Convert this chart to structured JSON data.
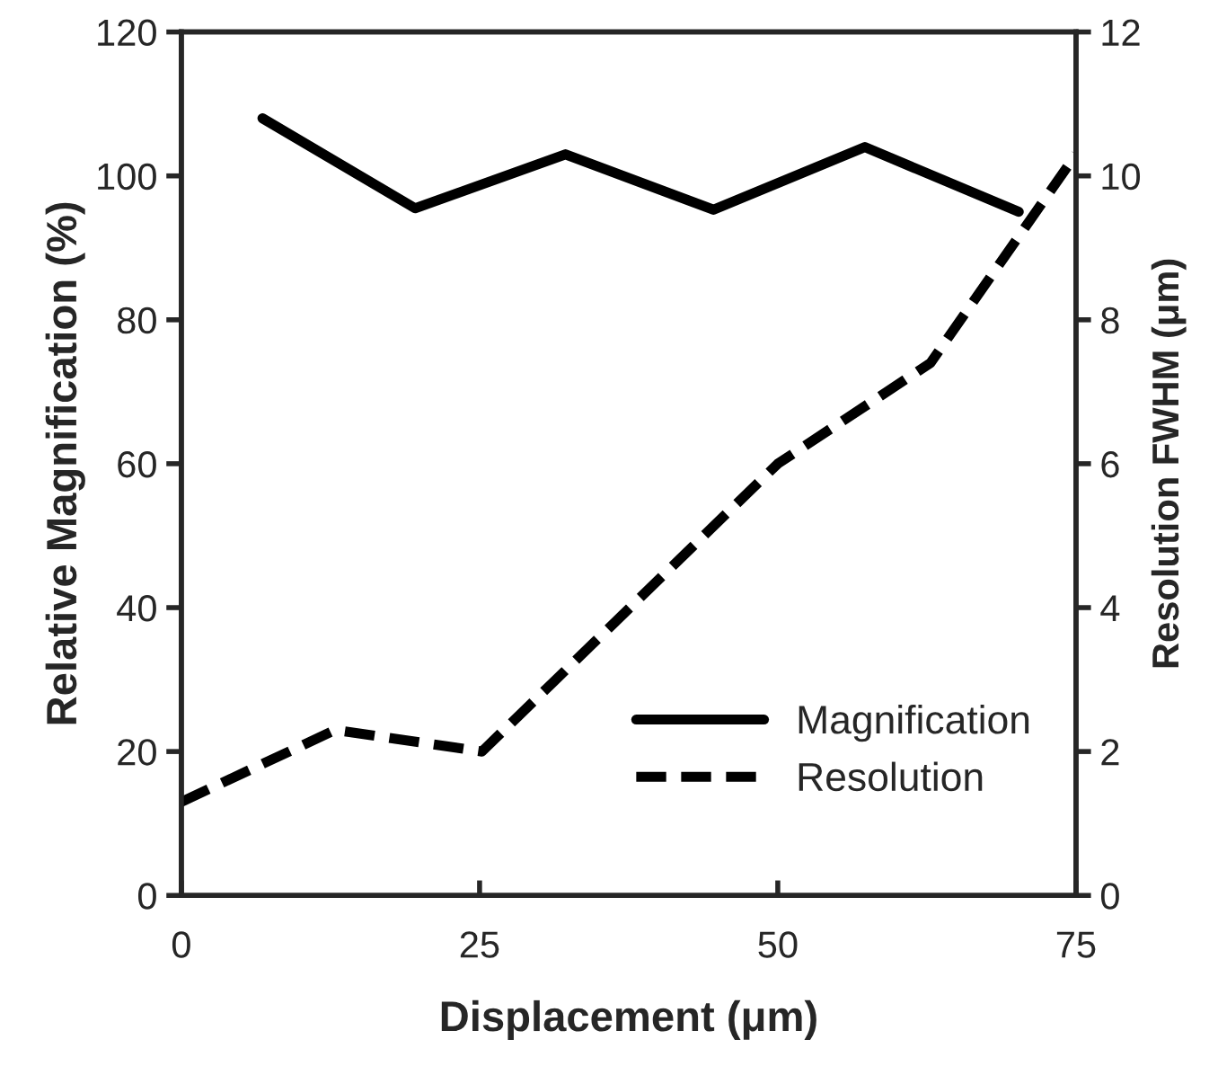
{
  "chart_data": {
    "type": "line",
    "xlabel": "Displacement (μm)",
    "ylabel": "Relative Magnification (%)",
    "y2label": "Resolution FWHM (μm)",
    "xlim": [
      0,
      75
    ],
    "xticks": [
      0,
      25,
      50,
      75
    ],
    "ylim": [
      0,
      120
    ],
    "yticks": [
      0,
      20,
      40,
      60,
      80,
      100,
      120
    ],
    "y2lim": [
      0,
      12
    ],
    "y2ticks": [
      0,
      2,
      4,
      6,
      8,
      10,
      12
    ],
    "legend": "bottom right",
    "grid": false,
    "series": [
      {
        "name": "Magnification",
        "color": "#000000",
        "line_style": "solid",
        "x": [
          6.8,
          19.6,
          32.2,
          44.6,
          57.3,
          70.2
        ],
        "values": [
          108,
          95.5,
          103,
          95.3,
          104,
          95
        ]
      },
      {
        "name": "Resolution",
        "color": "#000000",
        "line_style": "dashed",
        "axis": "y2",
        "x": [
          0,
          12.9,
          25.2,
          50,
          62.8,
          75
        ],
        "values": [
          1.3,
          2.3,
          2.0,
          6.0,
          7.4,
          10.3
        ]
      }
    ]
  }
}
